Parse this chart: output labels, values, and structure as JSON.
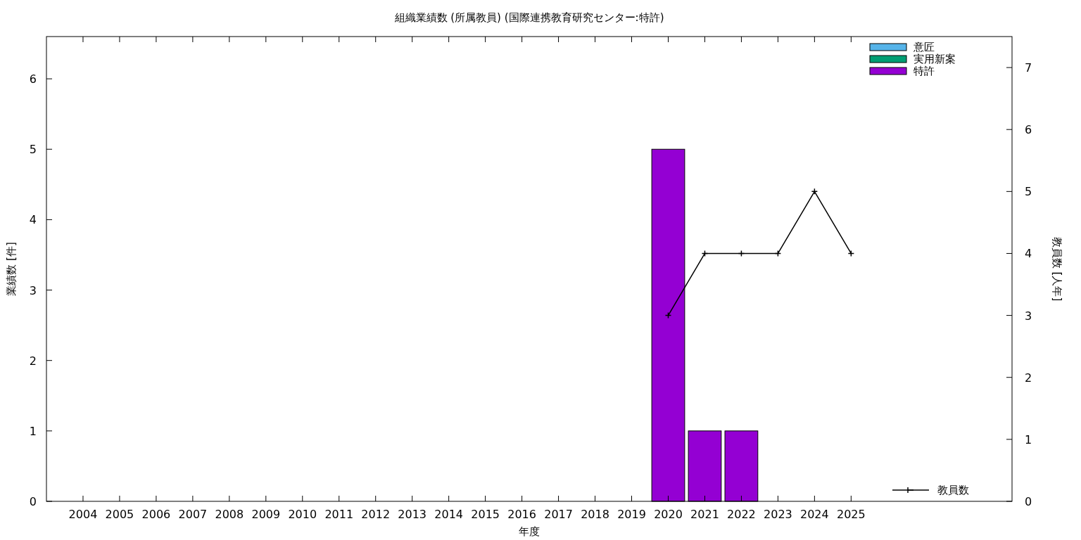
{
  "chart_data": {
    "type": "bar",
    "title": "組織業績数 (所属教員) (国際連携教育研究センター:特許)",
    "xlabel": "年度",
    "ylabel": "業績数 [件]",
    "y2label": "教員数 [人年]",
    "x": [
      2004,
      2005,
      2006,
      2007,
      2008,
      2009,
      2010,
      2011,
      2012,
      2013,
      2014,
      2015,
      2016,
      2017,
      2018,
      2019,
      2020,
      2021,
      2022,
      2023,
      2024,
      2025
    ],
    "xlim": [
      2003,
      2029.4
    ],
    "xticks": [
      2004,
      2005,
      2006,
      2007,
      2008,
      2009,
      2010,
      2011,
      2012,
      2013,
      2014,
      2015,
      2016,
      2017,
      2018,
      2019,
      2020,
      2021,
      2022,
      2023,
      2024,
      2025
    ],
    "ylim": [
      0,
      6.6
    ],
    "yticks": [
      0,
      1,
      2,
      3,
      4,
      5,
      6
    ],
    "y2lim": [
      0,
      7.5
    ],
    "y2ticks": [
      0,
      1,
      2,
      3,
      4,
      5,
      6,
      7
    ],
    "stacked": true,
    "legend": "top right",
    "grid": false,
    "series": [
      {
        "name": "意匠",
        "color": "#56b4e9",
        "values": [
          0,
          0,
          0,
          0,
          0,
          0,
          0,
          0,
          0,
          0,
          0,
          0,
          0,
          0,
          0,
          0,
          0,
          0,
          0,
          0,
          0,
          0
        ]
      },
      {
        "name": "実用新案",
        "color": "#009e73",
        "values": [
          0,
          0,
          0,
          0,
          0,
          0,
          0,
          0,
          0,
          0,
          0,
          0,
          0,
          0,
          0,
          0,
          0,
          0,
          0,
          0,
          0,
          0
        ]
      },
      {
        "name": "特許",
        "color": "#9400d3",
        "values": [
          0,
          0,
          0,
          0,
          0,
          0,
          0,
          0,
          0,
          0,
          0,
          0,
          0,
          0,
          0,
          0,
          5,
          1,
          1,
          0,
          0,
          0
        ]
      },
      {
        "name": "教員数",
        "type": "line",
        "axis": "y2",
        "color": "#000000",
        "marker": "cross",
        "x": [
          2020,
          2021,
          2022,
          2023,
          2024,
          2025
        ],
        "values": [
          3,
          4,
          4,
          4,
          5,
          4
        ]
      }
    ]
  }
}
